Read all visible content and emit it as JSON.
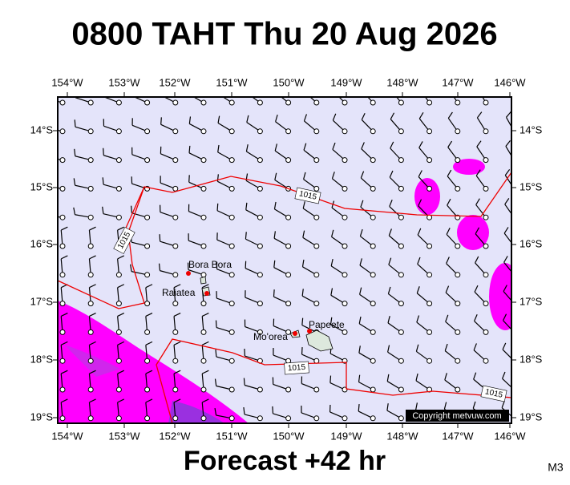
{
  "header": {
    "title": "0800 TAHT Thu 20 Aug 2026"
  },
  "map": {
    "longitudes": [
      "154°W",
      "153°W",
      "152°W",
      "151°W",
      "150°W",
      "149°W",
      "148°W",
      "147°W",
      "146°W"
    ],
    "latitudes": [
      "14°S",
      "15°S",
      "16°S",
      "17°S",
      "18°S",
      "19°S"
    ],
    "places": [
      "Bora Bora",
      "Raiatea",
      "Mo'orea",
      "Papeete"
    ],
    "isobar_labels": [
      "1015",
      "1015",
      "1015",
      "1015"
    ],
    "copyright": "Copyright metvuw.com"
  },
  "footer": {
    "forecast": "Forecast +42 hr",
    "code": "M3"
  }
}
